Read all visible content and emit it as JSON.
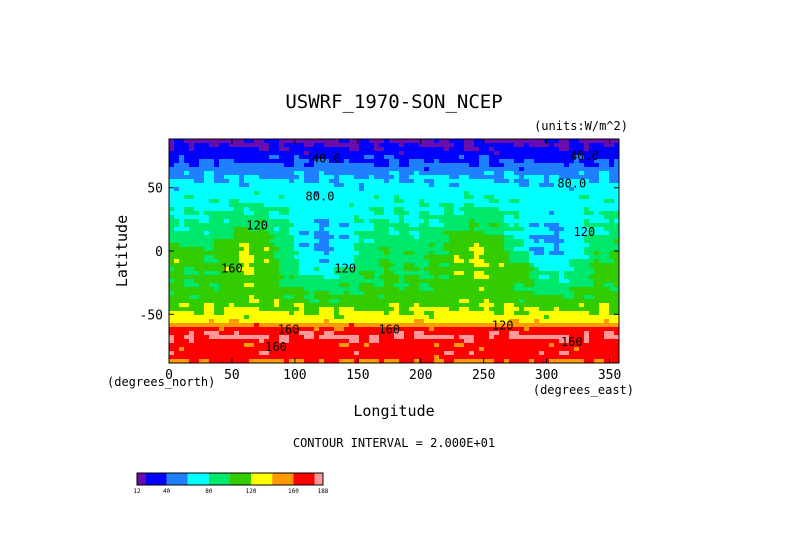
{
  "chart_data": {
    "type": "heatmap",
    "title": "USWRF_1970-SON_NCEP",
    "units_label": "(units:W/m^2)",
    "xlabel": "Longitude",
    "ylabel": "Latitude",
    "x_unit_label": "(degrees_east)",
    "y_unit_label": "(degrees_north)",
    "xlim": [
      0,
      357.5
    ],
    "ylim": [
      -88.5,
      88.5
    ],
    "x_ticks": [
      0,
      50,
      100,
      150,
      200,
      250,
      300,
      350
    ],
    "y_ticks": [
      50,
      0,
      -50
    ],
    "contour_interval_text": "CONTOUR INTERVAL = 2.000E+01",
    "contour_interval": 20,
    "levels": [
      12,
      20,
      40,
      60,
      80,
      100,
      120,
      140,
      160,
      180,
      188
    ],
    "colorbar_tick_labels": [
      "12",
      "40",
      "80",
      "120",
      "160",
      "188"
    ],
    "colorbar_tick_values": [
      12,
      40,
      80,
      120,
      160,
      188
    ],
    "colors": [
      "#6a0dad",
      "#0000ff",
      "#1e7fff",
      "#00ffff",
      "#00e86b",
      "#33cc00",
      "#ffff00",
      "#ff9900",
      "#ff0000",
      "#ff9999"
    ],
    "contour_labels": [
      {
        "text": "40.0",
        "lon": 125,
        "lat": 70
      },
      {
        "text": "40.0",
        "lon": 330,
        "lat": 72
      },
      {
        "text": "80.0",
        "lon": 120,
        "lat": 40
      },
      {
        "text": "80.0",
        "lon": 320,
        "lat": 50
      },
      {
        "text": "120",
        "lon": 70,
        "lat": 17
      },
      {
        "text": "120",
        "lon": 330,
        "lat": 12
      },
      {
        "text": "160",
        "lon": 50,
        "lat": -17
      },
      {
        "text": "120",
        "lon": 140,
        "lat": -17
      },
      {
        "text": "160",
        "lon": 95,
        "lat": -65
      },
      {
        "text": "160",
        "lon": 175,
        "lat": -65
      },
      {
        "text": "160",
        "lon": 85,
        "lat": -79
      },
      {
        "text": "120",
        "lon": 265,
        "lat": -62
      },
      {
        "text": "160",
        "lon": 320,
        "lat": -75
      }
    ]
  }
}
